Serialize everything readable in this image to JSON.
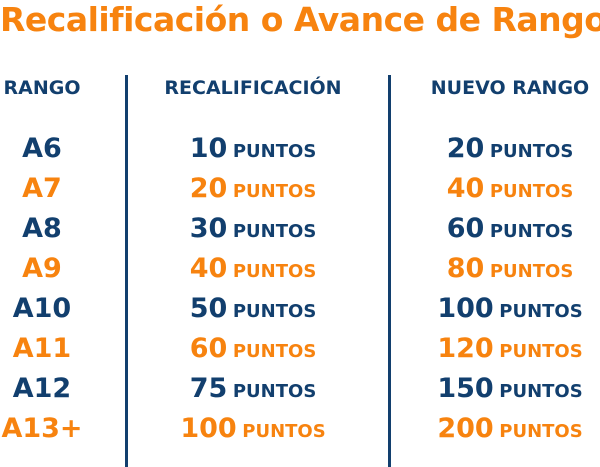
{
  "title": "Recalificación o Avance de Rango",
  "headers": {
    "rango": "RANGO",
    "recal": "RECALIFICACIÓN",
    "nuevo": "NUEVO RANGO"
  },
  "unit": "PUNTOS",
  "colors": {
    "navy": "#123f6e",
    "orange": "#f7830f"
  },
  "rows": [
    {
      "rango": "A6",
      "recal": "10",
      "nuevo": "20",
      "color": "navy"
    },
    {
      "rango": "A7",
      "recal": "20",
      "nuevo": "40",
      "color": "orange"
    },
    {
      "rango": "A8",
      "recal": "30",
      "nuevo": "60",
      "color": "navy"
    },
    {
      "rango": "A9",
      "recal": "40",
      "nuevo": "80",
      "color": "orange"
    },
    {
      "rango": "A10",
      "recal": "50",
      "nuevo": "100",
      "color": "navy"
    },
    {
      "rango": "A11",
      "recal": "60",
      "nuevo": "120",
      "color": "orange"
    },
    {
      "rango": "A12",
      "recal": "75",
      "nuevo": "150",
      "color": "navy"
    },
    {
      "rango": "A13+",
      "recal": "100",
      "nuevo": "200",
      "color": "orange"
    }
  ]
}
